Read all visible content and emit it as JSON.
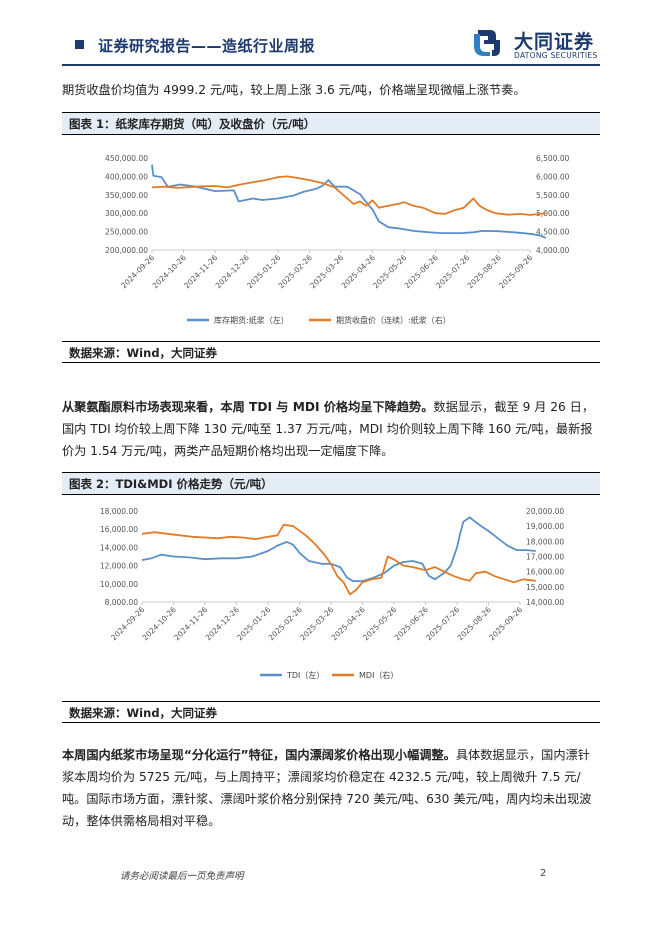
{
  "header": {
    "title": "证券研究报告——造纸行业周报",
    "logo_cn": "大同证券",
    "logo_en": "DATONG SECURITIES"
  },
  "para1": "期货收盘价均值为 4999.2 元/吨，较上周上涨 3.6 元/吨，价格端呈现微幅上涨节奏。",
  "fig1": {
    "title": "图表 1：纸浆库存期货（吨）及收盘价（元/吨）",
    "source": "数据来源：Wind，大同证券"
  },
  "para2": {
    "bold": "从聚氨酯原料市场表现来看，本周 TDI 与 MDI 价格均呈下降趋势。",
    "rest": "数据显示，截至 9 月 26 日，国内 TDI 均价较上周下降 130 元/吨至 1.37 万元/吨，MDI 均价则较上周下降 160 元/吨，最新报价为 1.54 万元/吨，两类产品短期价格均出现一定幅度下降。"
  },
  "fig2": {
    "title": "图表 2：TDI&MDI 价格走势（元/吨）",
    "source": "数据来源：Wind，大同证券"
  },
  "para3": {
    "bold": "本周国内纸浆市场呈现“分化运行”特征，国内漂阔浆价格出现小幅调整。",
    "rest": "具体数据显示，国内漂针浆本周均价为 5725 元/吨，与上周持平；漂阔浆均价稳定在 4232.5 元/吨，较上周微升 7.5 元/吨。国际市场方面，漂针浆、漂阔叶浆价格分别保持 720 美元/吨、630 美元/吨，周内均未出现波动，整体供需格局相对平稳。"
  },
  "footer": {
    "note": "请务必阅读最后一页免责声明",
    "page": "2"
  },
  "chart_data": [
    {
      "type": "line",
      "x_ticks": [
        "2024-09-26",
        "2024-10-26",
        "2024-11-26",
        "2024-12-26",
        "2025-01-26",
        "2025-02-26",
        "2025-03-26",
        "2025-04-26",
        "2025-05-26",
        "2025-06-26",
        "2025-07-26",
        "2025-08-26",
        "2025-09-26"
      ],
      "y_left": {
        "ticks": [
          "450,000.00",
          "400,000.00",
          "350,000.00",
          "300,000.00",
          "250,000.00",
          "200,000.00"
        ],
        "lim": [
          200000,
          450000
        ]
      },
      "y_right": {
        "ticks": [
          "6,500.00",
          "6,000.00",
          "5,500.00",
          "5,000.00",
          "4,500.00",
          "4,000.00"
        ],
        "lim": [
          4000,
          6500
        ]
      },
      "series": [
        {
          "name": "库存期货:纸浆（左）",
          "axis": "left",
          "color": "#5b8fc9",
          "values": [
            [
              0,
              432000
            ],
            [
              0.04,
              402000
            ],
            [
              0.3,
              398000
            ],
            [
              0.5,
              372000
            ],
            [
              0.9,
              378000
            ],
            [
              1.4,
              372000
            ],
            [
              2.0,
              360000
            ],
            [
              2.6,
              362000
            ],
            [
              2.75,
              332000
            ],
            [
              3.2,
              340000
            ],
            [
              3.5,
              336000
            ],
            [
              4.0,
              340000
            ],
            [
              4.5,
              348000
            ],
            [
              4.8,
              358000
            ],
            [
              5.2,
              366000
            ],
            [
              5.4,
              374000
            ],
            [
              5.6,
              390000
            ],
            [
              5.8,
              372000
            ],
            [
              6.2,
              372000
            ],
            [
              6.6,
              352000
            ],
            [
              6.8,
              330000
            ],
            [
              7.0,
              310000
            ],
            [
              7.2,
              278000
            ],
            [
              7.5,
              262000
            ],
            [
              7.9,
              258000
            ],
            [
              8.3,
              252000
            ],
            [
              8.8,
              248000
            ],
            [
              9.2,
              246000
            ],
            [
              9.8,
              246000
            ],
            [
              10.2,
              248000
            ],
            [
              10.5,
              252000
            ],
            [
              11.0,
              251000
            ],
            [
              11.5,
              248000
            ],
            [
              12.0,
              244000
            ],
            [
              12.3,
              240000
            ],
            [
              12.5,
              233000
            ]
          ]
        },
        {
          "name": "期货收盘价（连续）:纸浆（右）",
          "axis": "right",
          "color": "#e07b27",
          "values": [
            [
              0,
              5700
            ],
            [
              0.4,
              5720
            ],
            [
              0.8,
              5690
            ],
            [
              1.2,
              5710
            ],
            [
              1.6,
              5730
            ],
            [
              2.0,
              5740
            ],
            [
              2.4,
              5700
            ],
            [
              2.8,
              5780
            ],
            [
              3.2,
              5840
            ],
            [
              3.6,
              5900
            ],
            [
              4.0,
              5980
            ],
            [
              4.3,
              6000
            ],
            [
              4.6,
              5960
            ],
            [
              5.0,
              5900
            ],
            [
              5.4,
              5820
            ],
            [
              5.8,
              5700
            ],
            [
              6.0,
              5550
            ],
            [
              6.2,
              5400
            ],
            [
              6.4,
              5250
            ],
            [
              6.6,
              5320
            ],
            [
              6.8,
              5200
            ],
            [
              7.0,
              5350
            ],
            [
              7.2,
              5150
            ],
            [
              7.5,
              5200
            ],
            [
              7.8,
              5250
            ],
            [
              8.0,
              5300
            ],
            [
              8.3,
              5200
            ],
            [
              8.6,
              5150
            ],
            [
              9.0,
              5000
            ],
            [
              9.3,
              4980
            ],
            [
              9.6,
              5080
            ],
            [
              9.9,
              5150
            ],
            [
              10.2,
              5400
            ],
            [
              10.4,
              5200
            ],
            [
              10.6,
              5100
            ],
            [
              10.9,
              5000
            ],
            [
              11.3,
              4960
            ],
            [
              11.7,
              4980
            ],
            [
              12.0,
              4950
            ],
            [
              12.3,
              4980
            ],
            [
              12.5,
              5000
            ]
          ]
        }
      ]
    },
    {
      "type": "line",
      "x_ticks": [
        "2024-09-26",
        "2024-10-26",
        "2024-11-26",
        "2024-12-26",
        "2025-01-26",
        "2025-02-26",
        "2025-03-26",
        "2025-04-26",
        "2025-05-26",
        "2025-06-26",
        "2025-07-26",
        "2025-08-26",
        "2025-09-26"
      ],
      "y_left": {
        "ticks": [
          "18,000.00",
          "16,000.00",
          "14,000.00",
          "12,000.00",
          "10,000.00",
          "8,000.00"
        ],
        "lim": [
          8000,
          18000
        ]
      },
      "y_right": {
        "ticks": [
          "20,000.00",
          "19,000.00",
          "18,000.00",
          "17,000.00",
          "16,000.00",
          "15,000.00",
          "14,000.00"
        ],
        "lim": [
          14000,
          20000
        ]
      },
      "series": [
        {
          "name": "TDI（左）",
          "axis": "left",
          "color": "#5b8fc9",
          "values": [
            [
              0,
              12600
            ],
            [
              0.3,
              12800
            ],
            [
              0.6,
              13200
            ],
            [
              1.0,
              13000
            ],
            [
              1.5,
              12900
            ],
            [
              2.0,
              12700
            ],
            [
              2.5,
              12800
            ],
            [
              3.0,
              12800
            ],
            [
              3.5,
              13000
            ],
            [
              4.0,
              13600
            ],
            [
              4.3,
              14200
            ],
            [
              4.6,
              14600
            ],
            [
              4.8,
              14300
            ],
            [
              5.0,
              13400
            ],
            [
              5.3,
              12500
            ],
            [
              5.7,
              12200
            ],
            [
              6.0,
              12200
            ],
            [
              6.3,
              11800
            ],
            [
              6.5,
              10700
            ],
            [
              6.7,
              10300
            ],
            [
              7.0,
              10300
            ],
            [
              7.3,
              10600
            ],
            [
              7.7,
              11200
            ],
            [
              8.0,
              12000
            ],
            [
              8.3,
              12400
            ],
            [
              8.6,
              12500
            ],
            [
              8.9,
              12200
            ],
            [
              9.1,
              10900
            ],
            [
              9.3,
              10500
            ],
            [
              9.6,
              11200
            ],
            [
              9.8,
              12000
            ],
            [
              10.0,
              14000
            ],
            [
              10.1,
              15500
            ],
            [
              10.2,
              16800
            ],
            [
              10.4,
              17300
            ],
            [
              10.7,
              16500
            ],
            [
              11.0,
              15800
            ],
            [
              11.3,
              15000
            ],
            [
              11.6,
              14200
            ],
            [
              11.9,
              13700
            ],
            [
              12.2,
              13700
            ],
            [
              12.5,
              13600
            ]
          ]
        },
        {
          "name": "MDI（右）",
          "axis": "right",
          "color": "#e07b27",
          "values": [
            [
              0,
              18500
            ],
            [
              0.4,
              18600
            ],
            [
              0.8,
              18500
            ],
            [
              1.2,
              18400
            ],
            [
              1.6,
              18300
            ],
            [
              2.0,
              18250
            ],
            [
              2.4,
              18200
            ],
            [
              2.8,
              18300
            ],
            [
              3.2,
              18250
            ],
            [
              3.6,
              18150
            ],
            [
              4.0,
              18300
            ],
            [
              4.3,
              18400
            ],
            [
              4.5,
              19100
            ],
            [
              4.8,
              19000
            ],
            [
              5.2,
              18400
            ],
            [
              5.5,
              17800
            ],
            [
              5.8,
              17100
            ],
            [
              6.0,
              16500
            ],
            [
              6.2,
              15700
            ],
            [
              6.4,
              15300
            ],
            [
              6.6,
              14500
            ],
            [
              6.8,
              14800
            ],
            [
              7.0,
              15300
            ],
            [
              7.3,
              15500
            ],
            [
              7.6,
              15600
            ],
            [
              7.8,
              17000
            ],
            [
              8.0,
              16800
            ],
            [
              8.3,
              16400
            ],
            [
              8.6,
              16300
            ],
            [
              9.0,
              16100
            ],
            [
              9.3,
              16300
            ],
            [
              9.6,
              16000
            ],
            [
              9.9,
              15700
            ],
            [
              10.2,
              15500
            ],
            [
              10.4,
              15400
            ],
            [
              10.6,
              15900
            ],
            [
              10.9,
              16000
            ],
            [
              11.2,
              15700
            ],
            [
              11.5,
              15500
            ],
            [
              11.8,
              15300
            ],
            [
              12.1,
              15500
            ],
            [
              12.5,
              15400
            ]
          ]
        }
      ]
    }
  ]
}
